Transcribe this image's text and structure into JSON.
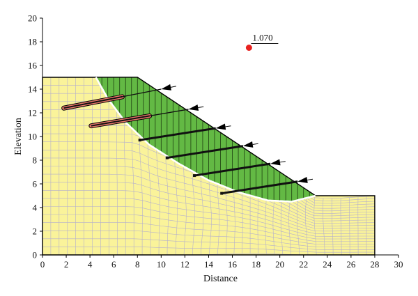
{
  "chart_data": {
    "type": "scatter",
    "xlabel": "Distance",
    "ylabel": "Elevation",
    "xlim": [
      0,
      30
    ],
    "ylim": [
      0,
      20
    ],
    "x_ticks": [
      "0",
      "2",
      "4",
      "6",
      "8",
      "10",
      "12",
      "14",
      "16",
      "18",
      "20",
      "22",
      "24",
      "26",
      "28",
      "30"
    ],
    "y_ticks": [
      "0",
      "2",
      "4",
      "6",
      "8",
      "10",
      "12",
      "14",
      "16",
      "18",
      "20"
    ],
    "slope_profile": [
      [
        0,
        0
      ],
      [
        0,
        15
      ],
      [
        8,
        15
      ],
      [
        23,
        5
      ],
      [
        28,
        5
      ],
      [
        28,
        0
      ]
    ],
    "slip_surface": [
      [
        4.5,
        15
      ],
      [
        5.5,
        13.2
      ],
      [
        7,
        11.2
      ],
      [
        9,
        9.3
      ],
      [
        11.5,
        7.7
      ],
      [
        14,
        6.3
      ],
      [
        16.5,
        5.3
      ],
      [
        19,
        4.6
      ],
      [
        21,
        4.5
      ],
      [
        23,
        5
      ]
    ],
    "critical_center": {
      "x": 17.4,
      "y": 17.5,
      "factor_of_safety": "1.070"
    },
    "reinforcement": [
      {
        "head": [
          10,
          14
        ],
        "tail": [
          1.8,
          12.4
        ],
        "grouted": true
      },
      {
        "head": [
          12.3,
          12.3
        ],
        "tail": [
          4.1,
          10.9
        ],
        "grouted": true
      },
      {
        "head": [
          14.6,
          10.7
        ],
        "tail": [
          8.2,
          9.7
        ],
        "grouted": false
      },
      {
        "head": [
          16.9,
          9.2
        ],
        "tail": [
          10.5,
          8.2
        ],
        "grouted": false
      },
      {
        "head": [
          19.2,
          7.7
        ],
        "tail": [
          12.8,
          6.7
        ],
        "grouted": false
      },
      {
        "head": [
          21.5,
          6.2
        ],
        "tail": [
          15.1,
          5.2
        ],
        "grouted": false
      }
    ],
    "colors": {
      "soil": "#faf39a",
      "mesh": "#a8a4d6",
      "sliding_mass": "#63b944",
      "slip_surface": "#ffffff",
      "center_point": "#e8211f",
      "grout": "#e8766a",
      "bar": "#111111"
    }
  }
}
